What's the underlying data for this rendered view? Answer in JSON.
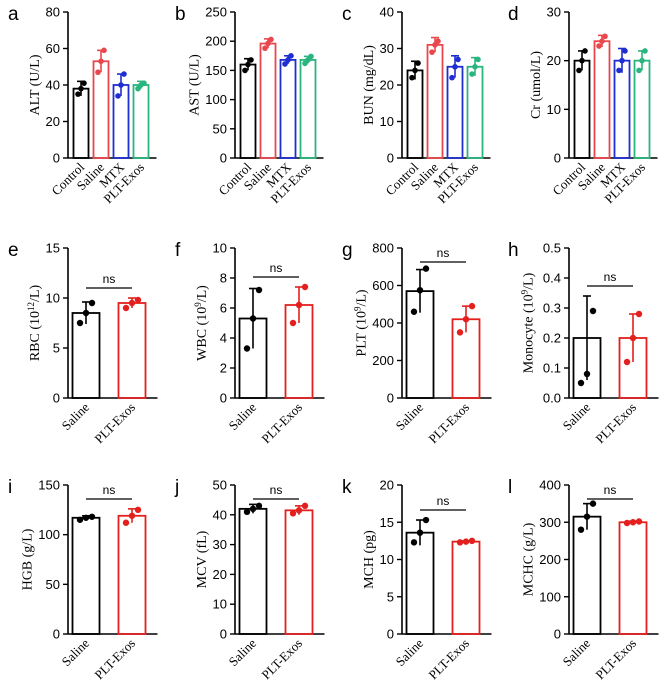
{
  "figure_title": "",
  "colors": {
    "Control": "#000000",
    "Saline": "#e8484d",
    "MTX": "#1f2ed0",
    "PLT-Exos": "#2ab57f",
    "SalineCBC": "#000000",
    "PLTExosCBC": "#e3201e",
    "axis": "#000000"
  },
  "chart_data": [
    {
      "type": "bar",
      "letter": "a",
      "ylabel": "ALT (U/L)",
      "categories": [
        "Control",
        "Saline",
        "MTX",
        "PLT-Exos"
      ],
      "values": [
        38,
        53,
        40,
        40
      ],
      "errors": [
        4,
        6,
        6,
        2
      ],
      "points": [
        [
          35,
          38,
          41
        ],
        [
          47,
          53,
          59
        ],
        [
          34,
          40,
          46
        ],
        [
          38,
          40,
          41
        ]
      ],
      "ylim": [
        0,
        80
      ],
      "yticks": [
        0,
        20,
        40,
        60,
        80
      ],
      "ns": ""
    },
    {
      "type": "bar",
      "letter": "b",
      "ylabel": "AST (U/L)",
      "categories": [
        "Control",
        "Saline",
        "MTX",
        "PLT-Exos"
      ],
      "values": [
        160,
        196,
        168,
        168
      ],
      "errors": [
        10,
        8,
        7,
        6
      ],
      "points": [
        [
          150,
          160,
          168
        ],
        [
          188,
          196,
          203
        ],
        [
          161,
          168,
          175
        ],
        [
          162,
          168,
          174
        ]
      ],
      "ylim": [
        0,
        250
      ],
      "yticks": [
        0,
        50,
        100,
        150,
        200,
        250
      ],
      "ns": ""
    },
    {
      "type": "bar",
      "letter": "c",
      "ylabel": "BUN (mg/dL)",
      "categories": [
        "Control",
        "Saline",
        "MTX",
        "PLT-Exos"
      ],
      "values": [
        24,
        31,
        25,
        25
      ],
      "errors": [
        2.5,
        2,
        3,
        2.5
      ],
      "points": [
        [
          22,
          24,
          26
        ],
        [
          29,
          31,
          32
        ],
        [
          22,
          25,
          27
        ],
        [
          23,
          25,
          27
        ]
      ],
      "ylim": [
        0,
        40
      ],
      "yticks": [
        0,
        10,
        20,
        30,
        40
      ],
      "ns": ""
    },
    {
      "type": "bar",
      "letter": "d",
      "ylabel": "Cr (umol/L)",
      "categories": [
        "Control",
        "Saline",
        "MTX",
        "PLT-Exos"
      ],
      "values": [
        20,
        24,
        20,
        20
      ],
      "errors": [
        2,
        1.2,
        2.5,
        2
      ],
      "points": [
        [
          18,
          20,
          22
        ],
        [
          23,
          24,
          25
        ],
        [
          18,
          20,
          22
        ],
        [
          18,
          20,
          22
        ]
      ],
      "ylim": [
        0,
        30
      ],
      "yticks": [
        0,
        10,
        20,
        30
      ],
      "ns": ""
    },
    {
      "type": "bar",
      "letter": "e",
      "ylabel": "RBC (10",
      "ylabel_sup": "12",
      "ylabel_tail": "/L)",
      "categories": [
        "Saline",
        "PLT-Exos"
      ],
      "values": [
        8.5,
        9.5
      ],
      "errors": [
        1.1,
        0.5
      ],
      "points": [
        [
          7.5,
          8.5,
          9.5
        ],
        [
          9,
          9.5,
          9.8
        ]
      ],
      "ylim": [
        0,
        15
      ],
      "yticks": [
        0,
        5,
        10,
        15
      ],
      "ns": "ns"
    },
    {
      "type": "bar",
      "letter": "f",
      "ylabel": "WBC (10",
      "ylabel_sup": "9",
      "ylabel_tail": "/L)",
      "categories": [
        "Saline",
        "PLT-Exos"
      ],
      "values": [
        5.3,
        6.2
      ],
      "errors": [
        2,
        1.2
      ],
      "points": [
        [
          3.3,
          5.3,
          7.2
        ],
        [
          5,
          6.2,
          7.4
        ]
      ],
      "ylim": [
        0,
        10
      ],
      "yticks": [
        0,
        2,
        4,
        6,
        8,
        10
      ],
      "ns": "ns"
    },
    {
      "type": "bar",
      "letter": "g",
      "ylabel": "PLT (10",
      "ylabel_sup": "9",
      "ylabel_tail": "/L)",
      "categories": [
        "Saline",
        "PLT-Exos"
      ],
      "values": [
        570,
        420
      ],
      "errors": [
        115,
        70
      ],
      "points": [
        [
          460,
          575,
          690
        ],
        [
          350,
          420,
          490
        ]
      ],
      "ylim": [
        0,
        800
      ],
      "yticks": [
        0,
        200,
        400,
        600,
        800
      ],
      "ns": "ns"
    },
    {
      "type": "bar",
      "letter": "h",
      "ylabel": "Monocyte (10",
      "ylabel_sup": "9",
      "ylabel_tail": "/L)",
      "categories": [
        "Saline",
        "PLT-Exos"
      ],
      "values": [
        0.2,
        0.2
      ],
      "errors": [
        0.14,
        0.08
      ],
      "points": [
        [
          0.05,
          0.08,
          0.29
        ],
        [
          0.12,
          0.2,
          0.28
        ]
      ],
      "ylim": [
        0,
        0.5
      ],
      "yticks": [
        0.0,
        0.1,
        0.2,
        0.3,
        0.4,
        0.5
      ],
      "ns": "ns"
    },
    {
      "type": "bar",
      "letter": "i",
      "ylabel": "HGB (g/L)",
      "categories": [
        "Saline",
        "PLT-Exos"
      ],
      "values": [
        117,
        119
      ],
      "errors": [
        2,
        7
      ],
      "points": [
        [
          115,
          117,
          118
        ],
        [
          112,
          119,
          125
        ]
      ],
      "ylim": [
        0,
        150
      ],
      "yticks": [
        0,
        50,
        100,
        150
      ],
      "ns": "ns"
    },
    {
      "type": "bar",
      "letter": "j",
      "ylabel": "MCV (fL)",
      "categories": [
        "Saline",
        "PLT-Exos"
      ],
      "values": [
        42,
        41.5
      ],
      "errors": [
        1.5,
        1.5
      ],
      "points": [
        [
          41,
          42,
          43
        ],
        [
          40.5,
          41.5,
          43
        ]
      ],
      "ylim": [
        0,
        50
      ],
      "yticks": [
        0,
        10,
        20,
        30,
        40,
        50
      ],
      "ns": "ns"
    },
    {
      "type": "bar",
      "letter": "k",
      "ylabel": "MCH (pg)",
      "categories": [
        "Saline",
        "PLT-Exos"
      ],
      "values": [
        13.6,
        12.4
      ],
      "errors": [
        1.7,
        0.1
      ],
      "points": [
        [
          12.3,
          13.6,
          15.3
        ],
        [
          12.3,
          12.4,
          12.5
        ]
      ],
      "ylim": [
        0,
        20
      ],
      "yticks": [
        0,
        5,
        10,
        15,
        20
      ],
      "ns": "ns"
    },
    {
      "type": "bar",
      "letter": "l",
      "ylabel": "MCHC (g/L)",
      "categories": [
        "Saline",
        "PLT-Exos"
      ],
      "values": [
        315,
        300
      ],
      "errors": [
        35,
        3
      ],
      "points": [
        [
          280,
          315,
          350
        ],
        [
          298,
          300,
          302
        ]
      ],
      "ylim": [
        0,
        400
      ],
      "yticks": [
        0,
        100,
        200,
        300,
        400
      ],
      "ns": "ns"
    }
  ]
}
